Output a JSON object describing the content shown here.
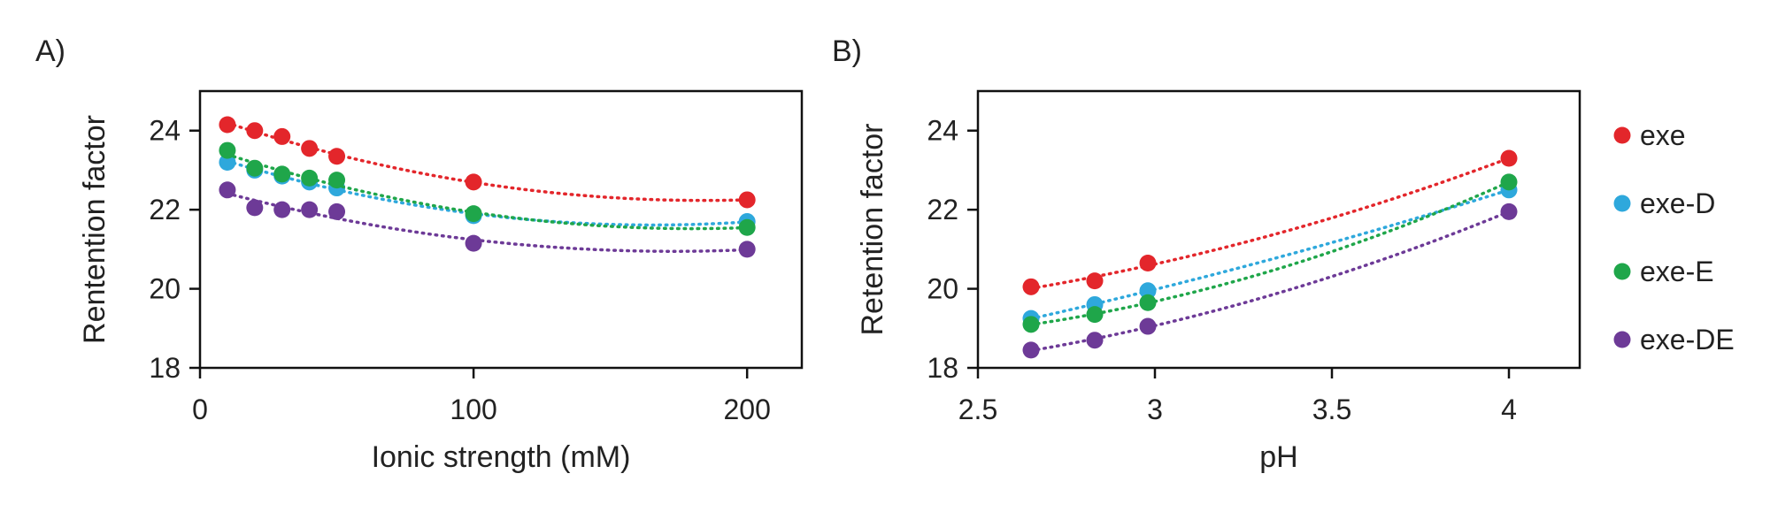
{
  "legend": {
    "entries": [
      {
        "label": "exe",
        "color": "#e3262b"
      },
      {
        "label": "exe-D",
        "color": "#2ea8dc"
      },
      {
        "label": "exe-E",
        "color": "#1fa64a"
      },
      {
        "label": "exe-DE",
        "color": "#6d3a97"
      }
    ]
  },
  "chart_data": [
    {
      "type": "scatter",
      "panel_label": "A)",
      "xlabel": "Ionic strength (mM)",
      "ylabel": "Rentention factor",
      "xlim": [
        0,
        220
      ],
      "ylim": [
        18,
        25
      ],
      "xticks": [
        0,
        100,
        200
      ],
      "yticks": [
        18,
        20,
        22,
        24
      ],
      "grid": false,
      "trendline": "dotted polynomial fit",
      "x": [
        10,
        20,
        30,
        40,
        50,
        100,
        200
      ],
      "series": [
        {
          "name": "exe",
          "color": "#e3262b",
          "values": [
            24.15,
            24.0,
            23.85,
            23.55,
            23.35,
            22.7,
            22.25
          ]
        },
        {
          "name": "exe-D",
          "color": "#2ea8dc",
          "values": [
            23.2,
            23.0,
            22.85,
            22.7,
            22.55,
            21.85,
            21.7
          ]
        },
        {
          "name": "exe-E",
          "color": "#1fa64a",
          "values": [
            23.5,
            23.05,
            22.9,
            22.8,
            22.75,
            21.9,
            21.55
          ]
        },
        {
          "name": "exe-DE",
          "color": "#6d3a97",
          "values": [
            22.5,
            22.05,
            22.0,
            22.0,
            21.95,
            21.15,
            21.0
          ]
        }
      ]
    },
    {
      "type": "scatter",
      "panel_label": "B)",
      "xlabel": "pH",
      "ylabel": "Retention factor",
      "xlim": [
        2.5,
        4.2
      ],
      "ylim": [
        18,
        25
      ],
      "xticks": [
        2.5,
        3,
        3.5,
        4
      ],
      "yticks": [
        18,
        20,
        22,
        24
      ],
      "grid": false,
      "trendline": "dotted polynomial fit",
      "x": [
        2.65,
        2.83,
        2.98,
        4.0
      ],
      "series": [
        {
          "name": "exe",
          "color": "#e3262b",
          "values": [
            20.05,
            20.2,
            20.65,
            23.3
          ]
        },
        {
          "name": "exe-D",
          "color": "#2ea8dc",
          "values": [
            19.25,
            19.6,
            19.95,
            22.5
          ]
        },
        {
          "name": "exe-E",
          "color": "#1fa64a",
          "values": [
            19.1,
            19.35,
            19.65,
            22.7
          ]
        },
        {
          "name": "exe-DE",
          "color": "#6d3a97",
          "values": [
            18.45,
            18.7,
            19.05,
            21.95
          ]
        }
      ]
    }
  ]
}
